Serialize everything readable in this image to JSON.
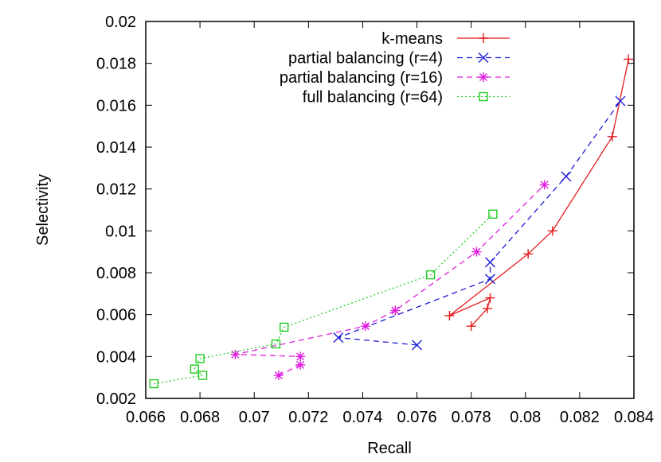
{
  "chart_data": {
    "type": "line",
    "xlabel": "Recall",
    "ylabel": "Selectivity",
    "xlim": [
      0.066,
      0.084
    ],
    "ylim": [
      0.002,
      0.02
    ],
    "xticks": [
      "0.066",
      "0.068",
      "0.07",
      "0.072",
      "0.074",
      "0.076",
      "0.078",
      "0.08",
      "0.082",
      "0.084"
    ],
    "yticks": [
      "0.002",
      "0.004",
      "0.006",
      "0.008",
      "0.01",
      "0.012",
      "0.014",
      "0.016",
      "0.018",
      "0.02"
    ],
    "grid": false,
    "legend_position": "top-right",
    "series": [
      {
        "name": "k-means",
        "color": "#e41a1c",
        "marker": "plus",
        "dash": "solid",
        "points": [
          [
            0.078,
            0.00545
          ],
          [
            0.0786,
            0.0063
          ],
          [
            0.0787,
            0.0068
          ],
          [
            0.0772,
            0.00595
          ],
          [
            0.0801,
            0.0089
          ],
          [
            0.081,
            0.01
          ],
          [
            0.0832,
            0.0145
          ],
          [
            0.0838,
            0.0182
          ]
        ]
      },
      {
        "name": "partial balancing (r=4)",
        "color": "#1a1ad6",
        "marker": "x",
        "dash": "dashed",
        "points": [
          [
            0.076,
            0.00455
          ],
          [
            0.0731,
            0.0049
          ],
          [
            0.0787,
            0.0077
          ],
          [
            0.0787,
            0.0085
          ],
          [
            0.0815,
            0.0126
          ],
          [
            0.0835,
            0.0162
          ]
        ]
      },
      {
        "name": "partial balancing (r=16)",
        "color": "#e020e0",
        "marker": "star",
        "dash": "dashed",
        "points": [
          [
            0.0709,
            0.0031
          ],
          [
            0.0717,
            0.0036
          ],
          [
            0.0717,
            0.004
          ],
          [
            0.0693,
            0.0041
          ],
          [
            0.0741,
            0.00545
          ],
          [
            0.0752,
            0.0062
          ],
          [
            0.0782,
            0.009
          ],
          [
            0.0807,
            0.0122
          ]
        ]
      },
      {
        "name": "full balancing (r=64)",
        "color": "#22cc22",
        "marker": "square",
        "dash": "dotted",
        "points": [
          [
            0.0663,
            0.0027
          ],
          [
            0.0681,
            0.0031
          ],
          [
            0.0678,
            0.0034
          ],
          [
            0.068,
            0.0039
          ],
          [
            0.0708,
            0.0046
          ],
          [
            0.0711,
            0.0054
          ],
          [
            0.0765,
            0.0079
          ],
          [
            0.0788,
            0.0108
          ]
        ]
      }
    ]
  }
}
